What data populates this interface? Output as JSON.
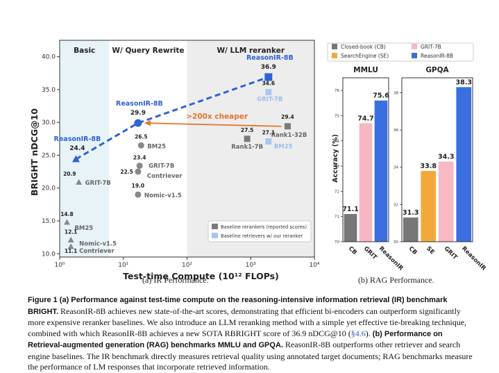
{
  "chart_data": [
    {
      "type": "scatter",
      "subcaption": {
        "label": "(a)",
        "text": "IR Performance."
      },
      "xlabel": "Test-time Compute (10¹² FLOPs)",
      "ylabel": "BRIGHT nDCG@10",
      "x_scale": "log",
      "xlim": [
        1,
        10000
      ],
      "ylim": [
        9.5,
        42.5
      ],
      "x_ticks": [
        {
          "value": 1,
          "label": "10⁰"
        },
        {
          "value": 10,
          "label": "10¹"
        },
        {
          "value": 100,
          "label": "10²"
        },
        {
          "value": 1000,
          "label": "10³"
        },
        {
          "value": 10000,
          "label": "10⁴"
        }
      ],
      "y_ticks": [
        10.0,
        15.0,
        20.0,
        25.0,
        30.0,
        35.0,
        40.0
      ],
      "regions": [
        {
          "label": "Basic",
          "x_range": [
            1,
            6
          ],
          "color": "#e8f3f8"
        },
        {
          "label": "W/ Query Rewrite",
          "x_range": [
            6,
            100
          ],
          "color": "#ffffff"
        },
        {
          "label": "W/ LLM reranker",
          "x_range": [
            100,
            10000
          ],
          "color": "#ededed"
        }
      ],
      "points": [
        {
          "name": "ReasonIR-8B",
          "x": 1.8,
          "y": 24.4,
          "value_label": "24.4",
          "marker": "triangle",
          "color": "#2f62d8",
          "group": "ReasonIR-8B",
          "bold": true
        },
        {
          "name": "GRIT-7B",
          "x": 2.0,
          "y": 20.9,
          "value_label": "20.9",
          "marker": "triangle",
          "color": "#888888",
          "group": "Basic"
        },
        {
          "name": "BM25",
          "x": 1.3,
          "y": 14.8,
          "value_label": "14.8",
          "marker": "triangle",
          "color": "#888888",
          "group": "Basic"
        },
        {
          "name": "Nomic-v1.5",
          "x": 1.5,
          "y": 12.1,
          "value_label": "12.1",
          "marker": "triangle",
          "color": "#888888",
          "group": "Basic"
        },
        {
          "name": "Contriever",
          "x": 1.5,
          "y": 11.1,
          "value_label": "11.1",
          "marker": "triangle",
          "color": "#888888",
          "group": "Basic"
        },
        {
          "name": "ReasonIR-8B",
          "x": 17,
          "y": 29.9,
          "value_label": "29.9",
          "marker": "circle",
          "color": "#2f62d8",
          "group": "ReasonIR-8B",
          "bold": true
        },
        {
          "name": "BM25",
          "x": 19,
          "y": 26.5,
          "value_label": "26.5",
          "marker": "circle",
          "color": "#888888",
          "group": "Query Rewrite"
        },
        {
          "name": "GRIT-7B",
          "x": 18,
          "y": 23.4,
          "value_label": "23.4",
          "marker": "circle",
          "color": "#888888",
          "group": "Query Rewrite"
        },
        {
          "name": "Contriever",
          "x": 17,
          "y": 22.5,
          "value_label": "22.5",
          "marker": "circle",
          "color": "#888888",
          "group": "Query Rewrite"
        },
        {
          "name": "Nomic-v1.5",
          "x": 17,
          "y": 19.0,
          "value_label": "19.0",
          "marker": "circle",
          "color": "#888888",
          "group": "Query Rewrite"
        },
        {
          "name": "ReasonIR-8B",
          "x": 1900,
          "y": 36.9,
          "value_label": "36.9",
          "marker": "square",
          "color": "#2f62d8",
          "group": "ReasonIR-8B",
          "bold": true
        },
        {
          "name": "GRIT-7B",
          "x": 1900,
          "y": 34.6,
          "value_label": "34.6",
          "marker": "square",
          "color": "#a9c6f2",
          "group": "Reranker"
        },
        {
          "name": "BM25",
          "x": 1900,
          "y": 27.1,
          "value_label": "27.1",
          "marker": "square",
          "color": "#a9c6f2",
          "group": "Reranker"
        },
        {
          "name": "Rank1-7B",
          "x": 880,
          "y": 27.5,
          "value_label": "27.5",
          "marker": "square",
          "color": "#7a7a7a",
          "group": "Reranker"
        },
        {
          "name": "Rank1-32B",
          "x": 3800,
          "y": 29.4,
          "value_label": "29.4",
          "marker": "square",
          "color": "#7a7a7a",
          "group": "Reranker"
        }
      ],
      "trend_line": {
        "points": [
          [
            1.8,
            24.4
          ],
          [
            17,
            29.9
          ],
          [
            1900,
            36.9
          ]
        ],
        "color": "#2f62d8",
        "style": "dashed"
      },
      "annotation": {
        "text": ">200x cheaper",
        "from": [
          3800,
          29.4
        ],
        "to": [
          17,
          29.9
        ],
        "color": "#e8742a"
      },
      "legend": {
        "placement": "bottom-right",
        "entries": [
          {
            "label": "Baseline rerankers (reported scores)",
            "color": "#7a7a7a"
          },
          {
            "label": "Baseline retrievers w/ our reranker",
            "color": "#a9c6f2"
          }
        ]
      }
    },
    {
      "type": "bar",
      "subcaption": {
        "label": "(b)",
        "text": "RAG Performance."
      },
      "ylabel": "Accuracy (%)",
      "categories": [
        "CB",
        "SE",
        "GRIT",
        "ReasonIR"
      ],
      "legend": {
        "placement": "top",
        "entries": [
          {
            "label": "Closed-book (CB)",
            "color": "#777777"
          },
          {
            "label": "GRIT-7B",
            "color": "#f7b7c3"
          },
          {
            "label": "SearchEngine (SE)",
            "color": "#f3a93a"
          },
          {
            "label": "ReasonIR-8B",
            "color": "#3b6fe0"
          }
        ]
      },
      "panels": [
        {
          "title": "MMLU",
          "ylim": [
            70,
            76.5
          ],
          "y_ticks": [
            70,
            71,
            72,
            73,
            74,
            75,
            76
          ],
          "bars": [
            {
              "category": "CB",
              "value": 71.1,
              "label": "71.1",
              "color": "#777777"
            },
            {
              "category": "GRIT",
              "value": 74.7,
              "label": "74.7",
              "color": "#f7b7c3"
            },
            {
              "category": "ReasonIR",
              "value": 75.6,
              "label": "75.6",
              "color": "#3b6fe0"
            }
          ]
        },
        {
          "title": "GPQA",
          "ylim": [
            30,
            38.8
          ],
          "y_ticks": [
            30,
            32,
            34,
            36,
            38
          ],
          "bars": [
            {
              "category": "CB",
              "value": 31.3,
              "label": "31.3",
              "color": "#777777"
            },
            {
              "category": "SE",
              "value": 33.8,
              "label": "33.8",
              "color": "#f3a93a"
            },
            {
              "category": "GRIT",
              "value": 34.3,
              "label": "34.3",
              "color": "#f7b7c3"
            },
            {
              "category": "ReasonIR",
              "value": 38.3,
              "label": "38.3",
              "color": "#3b6fe0"
            }
          ]
        }
      ]
    }
  ],
  "caption": {
    "fig_label": "Figure 1",
    "title": "(a) Performance against test-time compute on the reasoning-intensive information retrieval (IR) benchmark BRIGHT.",
    "part1": "ReasonIR-8B achieves new state-of-the-art scores, demonstrating that efficient bi-encoders can outperform significantly more expensive reranker baselines. We also introduce an LLM reranking method with a simple yet effective tie-breaking technique, combined with which ReasonIR-8B achieves a new SOTA RBRIGHT score of 36.9 nDCG@10 (",
    "ref": "§4.6",
    "part2": ").",
    "b_title": "(b) Performance on Retrieval-augmented generation (RAG) benchmarks MMLU and GPQA.",
    "part3": "ReasonIR-8B outperforms other retriever and search engine baselines. The IR benchmark directly measures retrieval quality using annotated target documents; RAG benchmarks measure the performance of LM responses that incorporate retrieved information."
  }
}
